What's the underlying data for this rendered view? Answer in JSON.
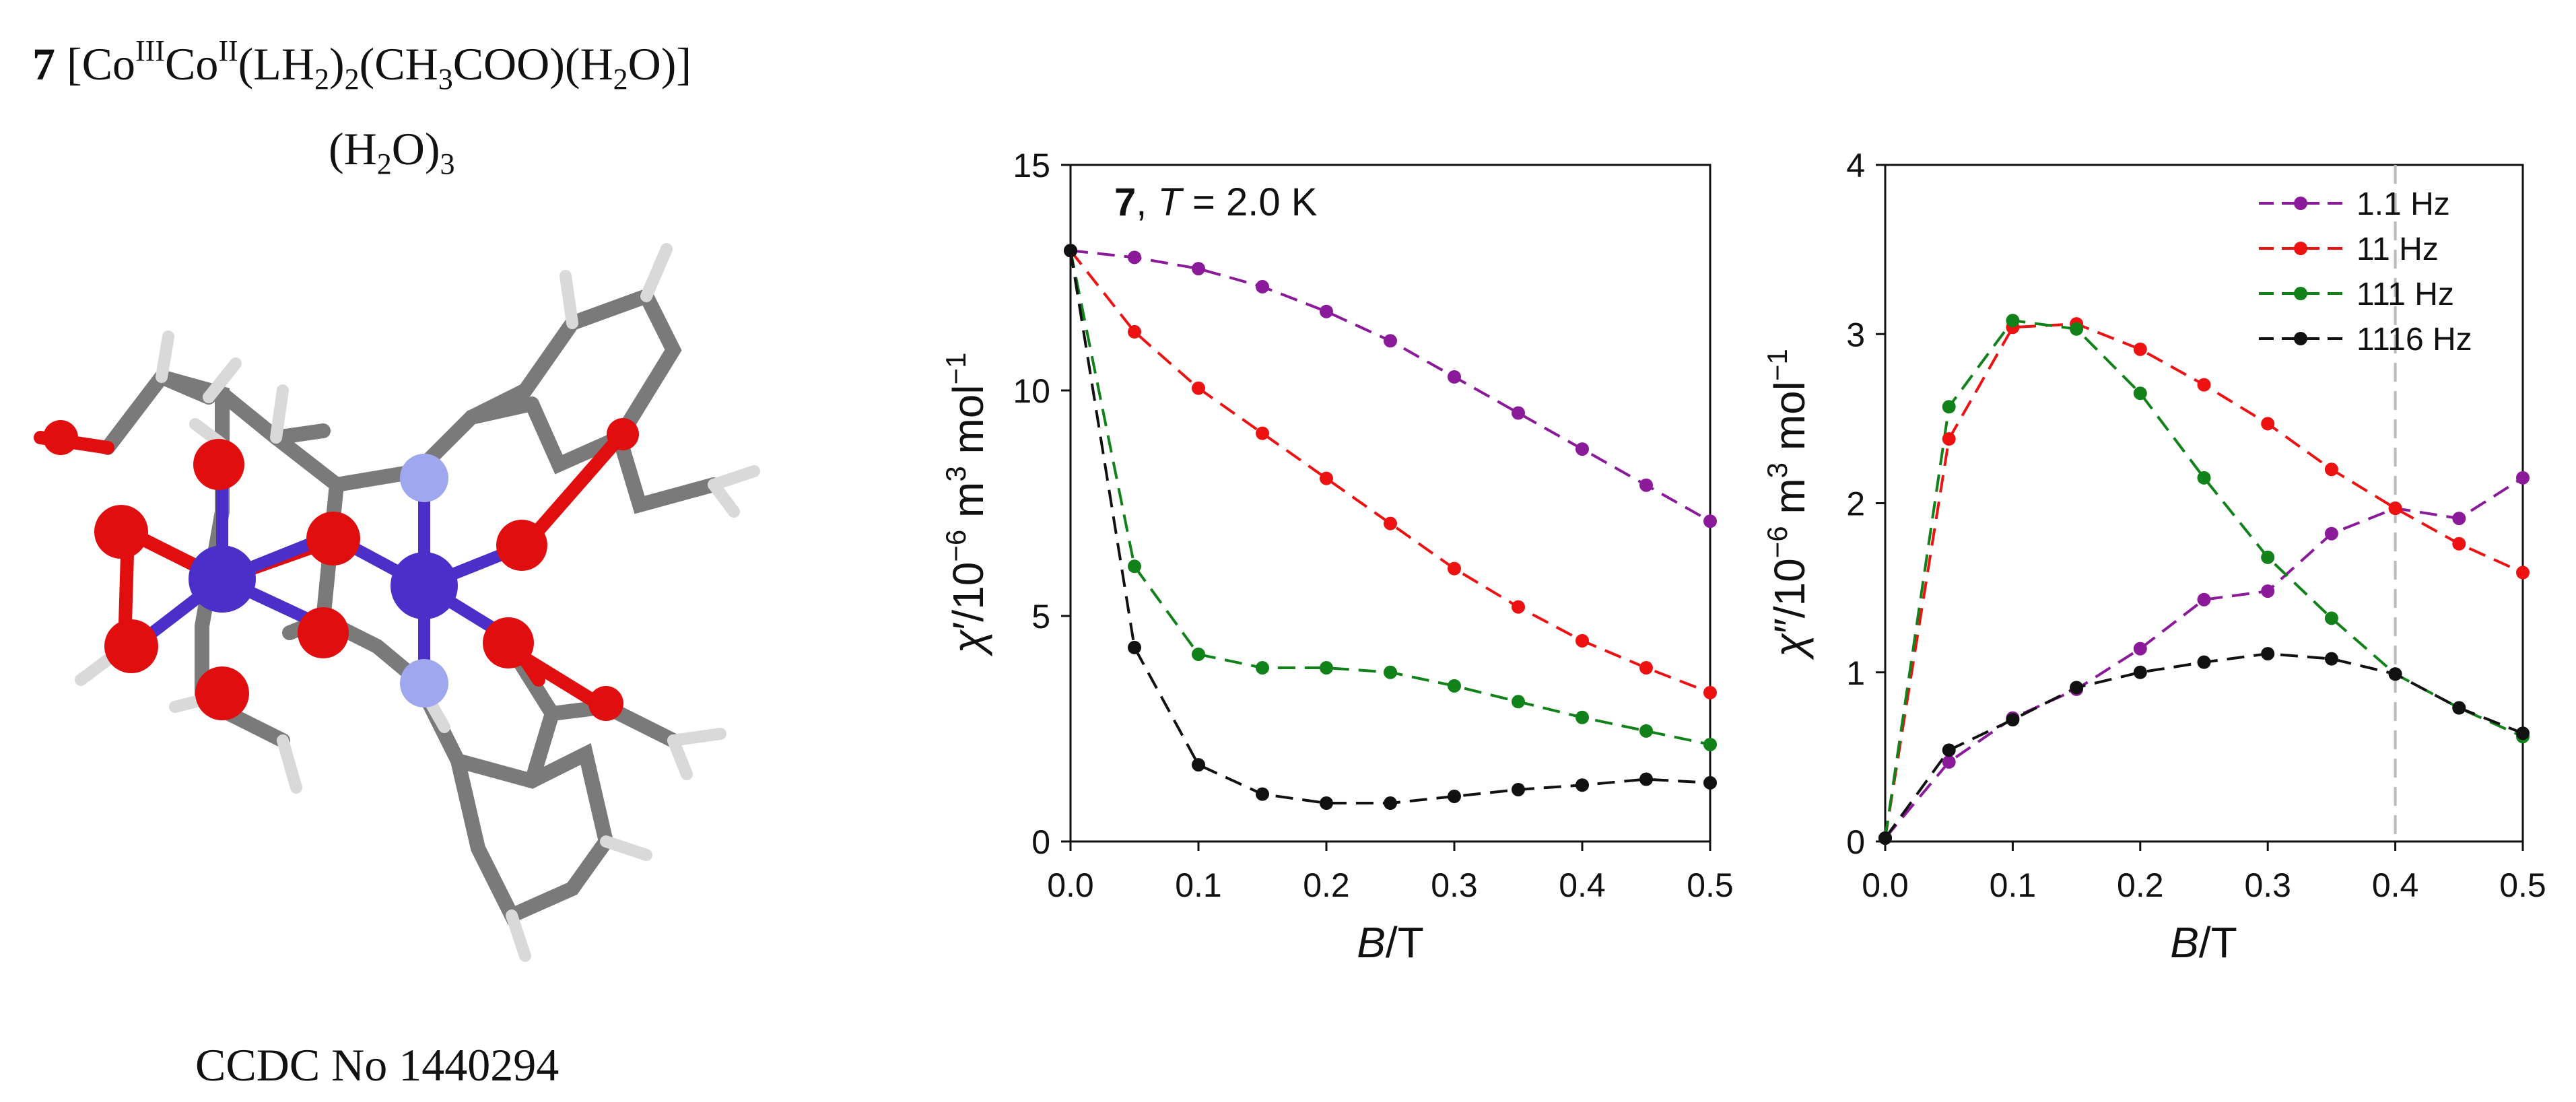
{
  "molecule_panel": {
    "compound_number": "7",
    "formula_line1": {
      "open": "[Co",
      "ox1": "III",
      "co": "Co",
      "ox2": "II",
      "lh": "(LH",
      "sub1": "2",
      "mid": ")",
      "sub2": "2",
      "ch3coo_a": "(CH",
      "sub3": "3",
      "ch3coo_b": "COO)(H",
      "sub4": "2",
      "tail": "O)]"
    },
    "formula_line2": {
      "a": "(H",
      "sub1": "2",
      "b": "O)",
      "sub2": "3"
    },
    "ccdc_label": "CCDC No 1440294"
  },
  "colors": {
    "purple": "#8B1A9B",
    "red": "#EE1111",
    "green": "#11811A",
    "black": "#111111",
    "cobalt": "#4B2FC8",
    "oxygen": "#E00E0E",
    "nitrogen": "#9FA8EE",
    "carbon": "#7A7A7A",
    "hydrogen": "#D9D9D9"
  },
  "chart_data": [
    {
      "type": "line",
      "id": "chi_real",
      "annotation": {
        "bold": "7",
        "rest_a": ", ",
        "italic": "T",
        "rest_b": " = 2.0 K"
      },
      "xlabel": {
        "italic": "B",
        "rest": "/T"
      },
      "ylabel": {
        "chi": "χ",
        "prime": "′",
        "unit_a": "/10",
        "exp": "−6",
        "unit_b": " m",
        "exp2": "3",
        "unit_c": " mol",
        "exp3": "−1"
      },
      "xlim": [
        0,
        0.5
      ],
      "ylim": [
        0,
        15
      ],
      "xticks": [
        "0.0",
        "0.1",
        "0.2",
        "0.3",
        "0.4",
        "0.5"
      ],
      "xtick_values": [
        0,
        0.1,
        0.2,
        0.3,
        0.4,
        0.5
      ],
      "yticks": [
        "0",
        "5",
        "10",
        "15"
      ],
      "ytick_values": [
        0,
        5,
        10,
        15
      ],
      "x": [
        0,
        0.05,
        0.1,
        0.15,
        0.2,
        0.25,
        0.3,
        0.35,
        0.4,
        0.45,
        0.5
      ],
      "series": [
        {
          "name": "1.1 Hz",
          "color": "#8B1A9B",
          "values": [
            13.1,
            12.95,
            12.7,
            12.3,
            11.75,
            11.1,
            10.3,
            9.5,
            8.7,
            7.9,
            7.1
          ]
        },
        {
          "name": "11 Hz",
          "color": "#EE1111",
          "values": [
            13.1,
            11.3,
            10.05,
            9.05,
            8.05,
            7.05,
            6.05,
            5.2,
            4.45,
            3.85,
            3.3
          ]
        },
        {
          "name": "111 Hz",
          "color": "#11811A",
          "values": [
            13.1,
            6.1,
            4.15,
            3.85,
            3.85,
            3.75,
            3.45,
            3.1,
            2.75,
            2.45,
            2.15
          ]
        },
        {
          "name": "1116 Hz",
          "color": "#111111",
          "values": [
            13.1,
            4.3,
            1.7,
            1.05,
            0.85,
            0.85,
            1.0,
            1.15,
            1.25,
            1.38,
            1.3
          ]
        }
      ]
    },
    {
      "type": "line",
      "id": "chi_imag",
      "xlabel": {
        "italic": "B",
        "rest": "/T"
      },
      "ylabel": {
        "chi": "χ",
        "prime": "″",
        "unit_a": "/10",
        "exp": "−6",
        "unit_b": " m",
        "exp2": "3",
        "unit_c": " mol",
        "exp3": "−1"
      },
      "xlim": [
        0,
        0.5
      ],
      "ylim": [
        0,
        4
      ],
      "xticks": [
        "0.0",
        "0.1",
        "0.2",
        "0.3",
        "0.4",
        "0.5"
      ],
      "xtick_values": [
        0,
        0.1,
        0.2,
        0.3,
        0.4,
        0.5
      ],
      "yticks": [
        "0",
        "1",
        "2",
        "3",
        "4"
      ],
      "ytick_values": [
        0,
        1,
        2,
        3,
        4
      ],
      "reference_x": 0.4,
      "legend": [
        "1.1 Hz",
        "11 Hz",
        "111 Hz",
        "1116 Hz"
      ],
      "x": [
        0,
        0.05,
        0.1,
        0.15,
        0.2,
        0.25,
        0.3,
        0.35,
        0.4,
        0.45,
        0.5
      ],
      "series": [
        {
          "name": "1.1 Hz",
          "color": "#8B1A9B",
          "values": [
            0.02,
            0.47,
            0.73,
            0.9,
            1.14,
            1.43,
            1.48,
            1.82,
            1.97,
            1.91,
            2.15
          ]
        },
        {
          "name": "11 Hz",
          "color": "#EE1111",
          "values": [
            0.02,
            2.38,
            3.04,
            3.06,
            2.91,
            2.7,
            2.47,
            2.2,
            1.97,
            1.76,
            1.59
          ]
        },
        {
          "name": "111 Hz",
          "color": "#11811A",
          "values": [
            0.02,
            2.57,
            3.08,
            3.03,
            2.65,
            2.15,
            1.68,
            1.32,
            0.99,
            0.79,
            0.62
          ]
        },
        {
          "name": "1116 Hz",
          "color": "#111111",
          "values": [
            0.02,
            0.54,
            0.72,
            0.91,
            1.0,
            1.06,
            1.11,
            1.08,
            0.99,
            0.79,
            0.64
          ]
        }
      ]
    }
  ]
}
